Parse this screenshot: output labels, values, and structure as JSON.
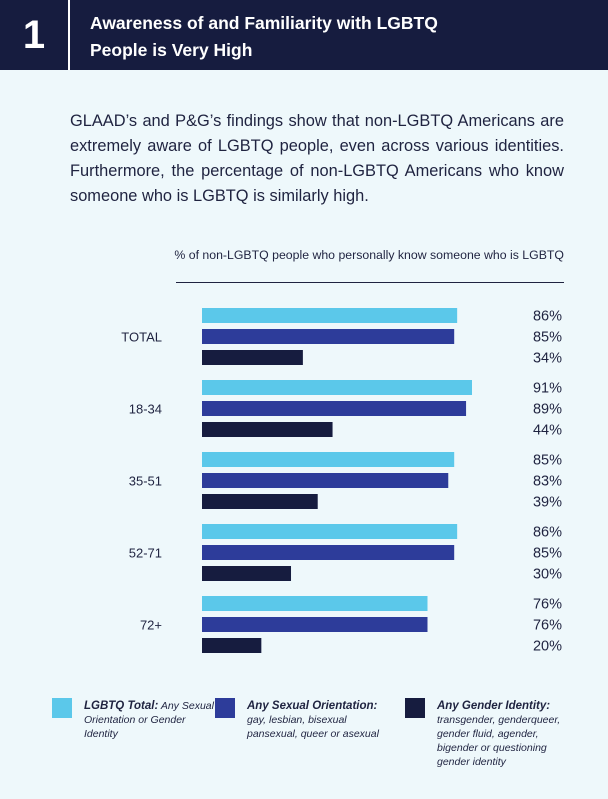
{
  "header": {
    "number": "1",
    "title_line1": "Awareness of and Familiarity with LGBTQ",
    "title_line2": "People is Very High"
  },
  "intro": "GLAAD’s and P&G’s findings show that non-LGBTQ Americans are extremely aware of LGBTQ people, even across various identities. Furthermore, the percentage of non-LGBTQ Americans who know someone who is LGBTQ is similarly high.",
  "colors": {
    "header_bg": "#161c3f",
    "background": "#eef8fb",
    "lgbtq_total": "#5bc8ea",
    "sexual_orientation": "#2d3c9a",
    "gender_identity": "#161c3f"
  },
  "chart_data": {
    "type": "bar",
    "orientation": "horizontal",
    "title": "% of non-LGBTQ people who personally know someone who is LGBTQ",
    "categories": [
      "TOTAL",
      "18-34",
      "35-51",
      "52-71",
      "72+"
    ],
    "series": [
      {
        "name": "LGBTQ Total",
        "values": [
          86,
          91,
          85,
          86,
          76
        ],
        "labels": [
          "86%",
          "91%",
          "85%",
          "86%",
          "76%"
        ],
        "color": "#5bc8ea"
      },
      {
        "name": "Any Sexual Orientation",
        "values": [
          85,
          89,
          83,
          85,
          76
        ],
        "labels": [
          "85%",
          "89%",
          "83%",
          "85%",
          "76%"
        ],
        "color": "#2d3c9a"
      },
      {
        "name": "Any Gender Identity",
        "values": [
          34,
          44,
          39,
          30,
          20
        ],
        "labels": [
          "34%",
          "44%",
          "39%",
          "30%",
          "20%"
        ],
        "color": "#161c3f"
      }
    ],
    "xlim": [
      0,
      100
    ],
    "grid": false,
    "legend": "bottom"
  },
  "legend": [
    {
      "name": "LGBTQ Total:",
      "desc": "Any Sexual Orientation or Gender Identity",
      "color": "#5bc8ea"
    },
    {
      "name": "Any Sexual Orientation:",
      "desc": "gay, lesbian, bisexual pansexual, queer or asexual",
      "color": "#2d3c9a"
    },
    {
      "name": "Any Gender Identity:",
      "desc": "transgender, genderqueer, gender fluid, agender, bigender or questioning gender identity",
      "color": "#161c3f"
    }
  ]
}
